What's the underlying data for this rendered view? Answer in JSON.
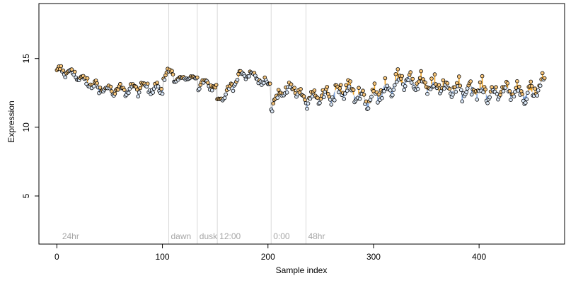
{
  "chart_data": {
    "type": "scatter",
    "title": "",
    "xlabel": "Sample index",
    "ylabel": "Expression",
    "xlim": [
      -17,
      481
    ],
    "ylim": [
      1.5,
      19
    ],
    "xticks": [
      0,
      100,
      200,
      300,
      400
    ],
    "yticks": [
      5,
      10,
      15
    ],
    "grid": false,
    "legend": "none",
    "colors": {
      "above_trend": "#f5a623",
      "below_trend": "#7fa7e0",
      "trend": "#bfbfbf",
      "marker_fill_light": "#dbe8f7",
      "marker_fill_warm": "#f7c57a",
      "marker_edge": "#000000",
      "separator": "#d9d9d9",
      "annotation_text": "#a6a6a6"
    },
    "annotations": [
      {
        "x": 3,
        "text": "24hr",
        "line": false
      },
      {
        "x": 106,
        "text": "dawn",
        "line": true
      },
      {
        "x": 133,
        "text": "dusk",
        "line": true
      },
      {
        "x": 152,
        "text": "12:00",
        "line": true
      },
      {
        "x": 203,
        "text": "0:00",
        "line": true
      },
      {
        "x": 236,
        "text": "48hr",
        "line": true
      }
    ],
    "segments": [
      {
        "start": 0,
        "end": 100,
        "level": 13.0,
        "spread": 0.45,
        "knots": [
          [
            0,
            14.0
          ],
          [
            12,
            14.1
          ],
          [
            25,
            13.4
          ],
          [
            40,
            12.9
          ],
          [
            55,
            12.6
          ],
          [
            70,
            12.8
          ],
          [
            85,
            12.9
          ],
          [
            100,
            12.9
          ]
        ]
      },
      {
        "start": 101,
        "end": 110,
        "level": 13.9,
        "spread": 0.3,
        "knots": [
          [
            101,
            13.5
          ],
          [
            105,
            14.0
          ],
          [
            110,
            13.9
          ]
        ]
      },
      {
        "start": 111,
        "end": 133,
        "level": 13.6,
        "spread": 0.12,
        "knots": [
          [
            111,
            13.4
          ],
          [
            120,
            13.6
          ],
          [
            133,
            13.6
          ]
        ]
      },
      {
        "start": 134,
        "end": 151,
        "level": 12.9,
        "spread": 0.4,
        "knots": [
          [
            134,
            13.0
          ],
          [
            142,
            13.3
          ],
          [
            151,
            12.6
          ]
        ]
      },
      {
        "start": 152,
        "end": 202,
        "level": 13.2,
        "spread": 0.35,
        "knots": [
          [
            152,
            11.8
          ],
          [
            162,
            12.6
          ],
          [
            175,
            13.9
          ],
          [
            185,
            13.9
          ],
          [
            195,
            13.3
          ],
          [
            202,
            13.3
          ]
        ]
      },
      {
        "start": 203,
        "end": 236,
        "level": 12.3,
        "spread": 0.45,
        "knots": [
          [
            203,
            11.5
          ],
          [
            212,
            12.5
          ],
          [
            222,
            13.0
          ],
          [
            230,
            12.3
          ],
          [
            236,
            12.0
          ]
        ]
      },
      {
        "start": 237,
        "end": 462,
        "level": 12.6,
        "spread": 0.75,
        "knots": [
          [
            237,
            12.1
          ],
          [
            255,
            12.3
          ],
          [
            275,
            12.8
          ],
          [
            295,
            12.0
          ],
          [
            315,
            13.0
          ],
          [
            330,
            13.5
          ],
          [
            350,
            13.0
          ],
          [
            370,
            12.9
          ],
          [
            390,
            12.8
          ],
          [
            410,
            12.5
          ],
          [
            430,
            12.7
          ],
          [
            450,
            12.4
          ],
          [
            462,
            13.3
          ]
        ]
      }
    ]
  }
}
